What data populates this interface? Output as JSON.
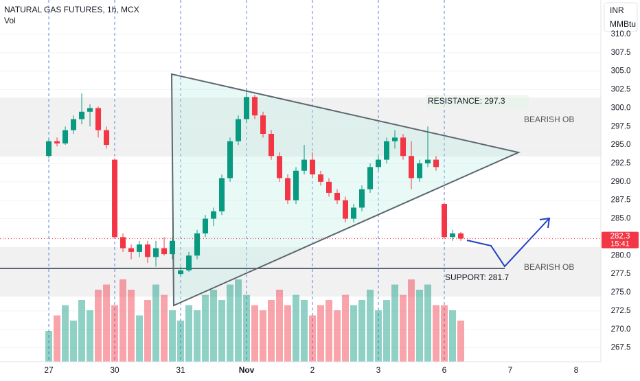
{
  "chart_data": {
    "type": "candlestick",
    "title": "NATURAL GAS FUTURES, 1h, MCX",
    "subtitle": "Vol",
    "currency": "INR",
    "unit": "MMBtu",
    "up_color": "#089981",
    "down_color": "#f23645",
    "x": [
      0,
      0.125,
      0.25,
      0.375,
      0.5,
      0.625,
      0.75,
      0.875,
      1,
      1.125,
      1.25,
      1.375,
      1.5,
      1.625,
      1.75,
      1.875,
      2,
      2.125,
      2.25,
      2.375,
      2.5,
      2.625,
      2.75,
      2.875,
      3,
      3.125,
      3.25,
      3.375,
      3.5,
      3.625,
      3.75,
      3.875,
      4,
      4.125,
      4.25,
      4.375,
      4.5,
      4.625,
      4.75,
      4.875,
      5,
      5.125,
      5.25,
      5.375,
      5.5,
      5.625,
      5.75,
      5.875,
      6,
      6.125,
      6.25
    ],
    "open": [
      293.5,
      295.5,
      295.2,
      297,
      298.5,
      299.5,
      300,
      297,
      293,
      282.5,
      281,
      280.5,
      281.5,
      279.8,
      281,
      280.2,
      277.5,
      278,
      280,
      283,
      285,
      286,
      290.5,
      295.5,
      298.5,
      301.5,
      299,
      296.5,
      293.5,
      290.5,
      287.5,
      291.5,
      293,
      291,
      290,
      288.5,
      287.5,
      285,
      286.5,
      289,
      292,
      293,
      295.5,
      296,
      293.5,
      290.5,
      292.5,
      293,
      287,
      282.5,
      283
    ],
    "high": [
      295.8,
      296,
      297.5,
      299,
      302,
      300.5,
      300.2,
      297.5,
      293.2,
      283,
      281.5,
      282,
      282,
      282,
      282.5,
      282.5,
      278.5,
      280.5,
      283.5,
      285.5,
      286.5,
      291,
      296,
      299,
      302.5,
      301.8,
      299.5,
      297,
      294,
      291,
      292,
      295,
      294,
      291.5,
      290.5,
      289,
      288,
      287,
      289.5,
      292.5,
      293.5,
      296,
      297,
      296.5,
      295.5,
      293,
      297.5,
      293.5,
      287.2,
      283.5,
      283.2
    ],
    "low": [
      293.2,
      294.8,
      295,
      296.5,
      297.8,
      297.5,
      296,
      294.5,
      282.3,
      280.5,
      279.5,
      279.8,
      279,
      278.5,
      280,
      279.5,
      277.2,
      277.8,
      279.5,
      282.5,
      284,
      285.5,
      290,
      295,
      298,
      298.5,
      296,
      293,
      290,
      287,
      287,
      291,
      290.5,
      289.5,
      288,
      287,
      284.5,
      284.5,
      286,
      288.5,
      291.5,
      292.5,
      294.5,
      293,
      289,
      290,
      292,
      291.5,
      282.3,
      282,
      282
    ],
    "close": [
      295.5,
      295.2,
      297,
      298.5,
      299.5,
      300,
      297,
      295,
      282.5,
      281,
      280.5,
      281.5,
      279.8,
      281,
      280.2,
      282,
      278,
      280,
      283,
      285,
      286,
      290.5,
      295.5,
      298.5,
      301.5,
      299,
      296.5,
      293.5,
      290.5,
      287.5,
      291.5,
      293,
      291,
      290,
      288.5,
      287.5,
      285,
      286.5,
      289,
      292,
      293,
      295.5,
      296,
      293.5,
      290.5,
      292.5,
      293,
      292,
      282.5,
      283,
      282.3
    ],
    "volume": [
      30,
      45,
      55,
      40,
      60,
      50,
      70,
      75,
      55,
      80,
      70,
      45,
      60,
      75,
      65,
      50,
      40,
      55,
      50,
      65,
      70,
      60,
      75,
      80,
      65,
      55,
      50,
      60,
      70,
      55,
      65,
      60,
      45,
      55,
      60,
      50,
      65,
      55,
      60,
      70,
      50,
      60,
      75,
      65,
      80,
      70,
      75,
      55,
      55,
      50,
      40
    ],
    "vlim": [
      0,
      100
    ],
    "xlim": [
      -0.74,
      8.375
    ],
    "xticks": [
      {
        "value": 0,
        "label": "27"
      },
      {
        "value": 1,
        "label": "30"
      },
      {
        "value": 2,
        "label": "31"
      },
      {
        "value": 3,
        "label": "Nov"
      },
      {
        "value": 4,
        "label": "2"
      },
      {
        "value": 5,
        "label": "3"
      },
      {
        "value": 6,
        "label": "6"
      },
      {
        "value": 7,
        "label": "7"
      },
      {
        "value": 8,
        "label": "8"
      }
    ],
    "ylim": [
      265.6,
      314.65
    ],
    "yticks": [
      {
        "value": 267.5,
        "label": "267.5"
      },
      {
        "value": 270,
        "label": "270.0"
      },
      {
        "value": 272.5,
        "label": "272.5"
      },
      {
        "value": 275,
        "label": "275.0"
      },
      {
        "value": 277.5,
        "label": "277.5"
      },
      {
        "value": 280,
        "label": "280.0"
      },
      {
        "value": 282.5,
        "label": "282.5"
      },
      {
        "value": 285,
        "label": "285.0"
      },
      {
        "value": 287.5,
        "label": "287.5"
      },
      {
        "value": 290,
        "label": "290.0"
      },
      {
        "value": 292.5,
        "label": "292.5"
      },
      {
        "value": 295,
        "label": "295.0"
      },
      {
        "value": 297.5,
        "label": "297.5"
      },
      {
        "value": 300,
        "label": "300.0"
      },
      {
        "value": 302.5,
        "label": "302.5"
      },
      {
        "value": 305,
        "label": "305.0"
      },
      {
        "value": 307.5,
        "label": "307.5"
      },
      {
        "value": 310,
        "label": "310.0"
      }
    ],
    "last_price": {
      "value": 282.3,
      "label": "282.3"
    },
    "countdown": "15:41",
    "annotations": [
      "RESISTANCE: 297.3",
      "BEARISH OB",
      "SUPPORT: 281.7",
      "BEARISH OB"
    ]
  }
}
